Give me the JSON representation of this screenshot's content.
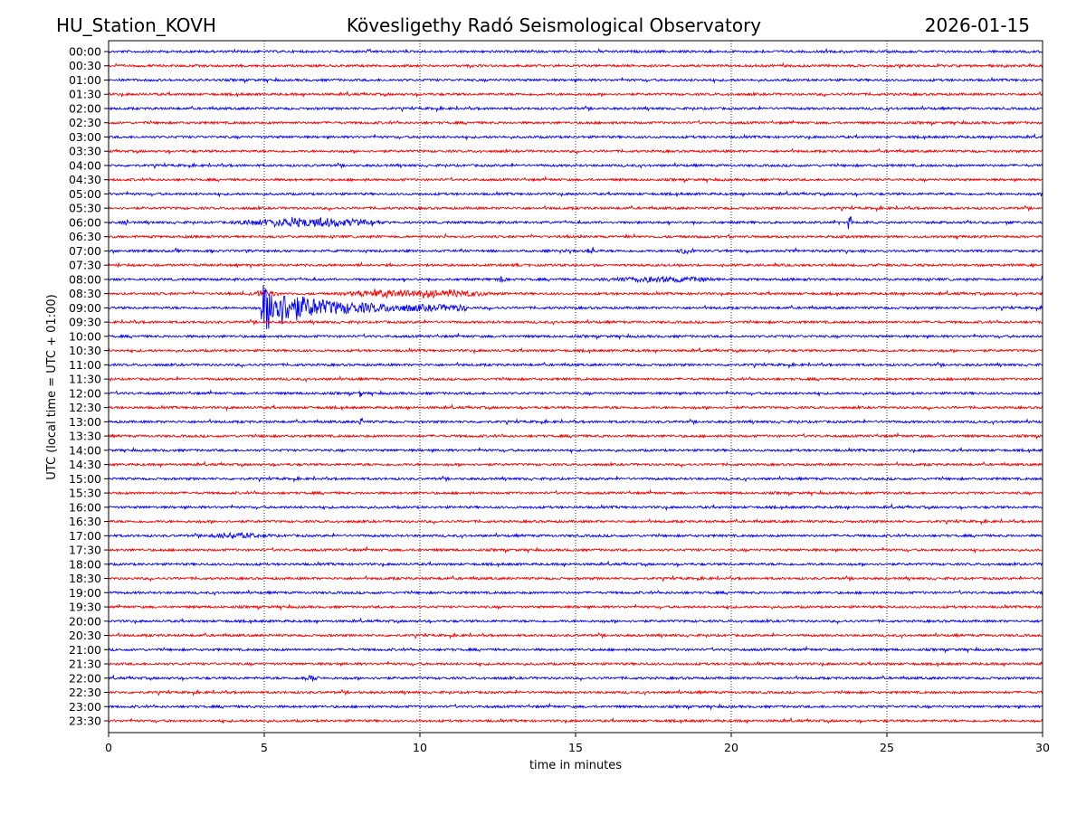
{
  "header": {
    "station": "HU_Station_KOVH",
    "observatory": "Kövesligethy Radó Seismological Observatory",
    "date": "2026-01-15"
  },
  "chart_data": {
    "type": "line",
    "title": "Kövesligethy Radó Seismological Observatory",
    "xlabel": "time in minutes",
    "ylabel": "UTC (local time = UTC + 01:00)",
    "xlim": [
      0,
      30
    ],
    "xticks": [
      "0",
      "5",
      "10",
      "15",
      "20",
      "25",
      "30"
    ],
    "grid": "vertical dotted at every 5 minutes",
    "colors": [
      "#0000ff",
      "#ff0000"
    ],
    "traces": [
      "00:00",
      "00:30",
      "01:00",
      "01:30",
      "02:00",
      "02:30",
      "03:00",
      "03:30",
      "04:00",
      "04:30",
      "05:00",
      "05:30",
      "06:00",
      "06:30",
      "07:00",
      "07:30",
      "08:00",
      "08:30",
      "09:00",
      "09:30",
      "10:00",
      "10:30",
      "11:00",
      "11:30",
      "12:00",
      "12:30",
      "13:00",
      "13:30",
      "14:00",
      "14:30",
      "15:00",
      "15:30",
      "16:00",
      "16:30",
      "17:00",
      "17:30",
      "18:00",
      "18:30",
      "19:00",
      "19:30",
      "20:00",
      "20:30",
      "21:00",
      "21:30",
      "22:00",
      "22:30",
      "23:00",
      "23:30"
    ],
    "noise_level": 1,
    "events": [
      {
        "trace": "06:00",
        "start": 0.4,
        "end": 0.7,
        "amp": 1.5,
        "shape": "burst"
      },
      {
        "trace": "06:00",
        "start": 3.8,
        "end": 9.0,
        "amp": 3.5,
        "shape": "burst"
      },
      {
        "trace": "06:00",
        "start": 23.75,
        "end": 23.85,
        "amp": 5,
        "shape": "spike"
      },
      {
        "trace": "07:00",
        "start": 15.3,
        "end": 15.7,
        "amp": 2,
        "shape": "burst"
      },
      {
        "trace": "07:00",
        "start": 18.2,
        "end": 18.9,
        "amp": 2,
        "shape": "burst"
      },
      {
        "trace": "08:00",
        "start": 12.4,
        "end": 12.8,
        "amp": 2,
        "shape": "burst"
      },
      {
        "trace": "08:00",
        "start": 15.5,
        "end": 19.8,
        "amp": 2,
        "shape": "burst"
      },
      {
        "trace": "08:30",
        "start": 4.4,
        "end": 5.6,
        "amp": 2,
        "shape": "burst"
      },
      {
        "trace": "08:30",
        "start": 7.2,
        "end": 12.6,
        "amp": 3,
        "shape": "burst"
      },
      {
        "trace": "09:00",
        "start": 4.9,
        "end": 11.5,
        "amp": 18,
        "shape": "decay"
      },
      {
        "trace": "12:00",
        "start": 8.05,
        "end": 8.15,
        "amp": 2.5,
        "shape": "spike"
      },
      {
        "trace": "13:00",
        "start": 8.05,
        "end": 8.15,
        "amp": 2,
        "shape": "spike"
      },
      {
        "trace": "17:00",
        "start": 3.0,
        "end": 5.3,
        "amp": 1.8,
        "shape": "burst"
      },
      {
        "trace": "22:00",
        "start": 6.2,
        "end": 6.8,
        "amp": 2.2,
        "shape": "burst"
      }
    ]
  }
}
